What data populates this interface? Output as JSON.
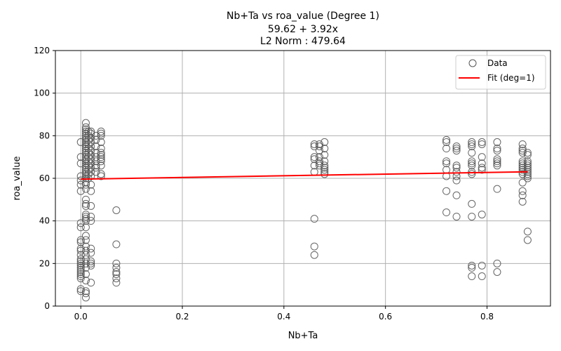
{
  "chart_data": {
    "type": "scatter",
    "title_lines": [
      "Nb+Ta vs roa_value (Degree 1)",
      "59.62 + 3.92x",
      "L2 Norm : 479.64"
    ],
    "xlabel": "Nb+Ta",
    "ylabel": "roa_value",
    "xlim": [
      -0.05,
      0.925
    ],
    "ylim": [
      0,
      120
    ],
    "xticks": [
      0.0,
      0.2,
      0.4,
      0.6,
      0.8
    ],
    "xtick_labels": [
      "0.0",
      "0.2",
      "0.4",
      "0.6",
      "0.8"
    ],
    "yticks": [
      0,
      20,
      40,
      60,
      80,
      100,
      120
    ],
    "ytick_labels": [
      "0",
      "20",
      "40",
      "60",
      "80",
      "100",
      "120"
    ],
    "grid": true,
    "legend_position": "top-right",
    "series": [
      {
        "name": "Data",
        "kind": "scatter",
        "marker": "hollow-circle",
        "color": "#555555",
        "points": [
          [
            0.0,
            77
          ],
          [
            0.0,
            70
          ],
          [
            0.0,
            67
          ],
          [
            0.0,
            61
          ],
          [
            0.0,
            59
          ],
          [
            0.0,
            57
          ],
          [
            0.0,
            54
          ],
          [
            0.0,
            39
          ],
          [
            0.0,
            37
          ],
          [
            0.0,
            31
          ],
          [
            0.0,
            30
          ],
          [
            0.0,
            27
          ],
          [
            0.0,
            26
          ],
          [
            0.0,
            24
          ],
          [
            0.0,
            22
          ],
          [
            0.0,
            21
          ],
          [
            0.0,
            20
          ],
          [
            0.0,
            19
          ],
          [
            0.0,
            18
          ],
          [
            0.0,
            17
          ],
          [
            0.0,
            16
          ],
          [
            0.0,
            15
          ],
          [
            0.0,
            14
          ],
          [
            0.0,
            13
          ],
          [
            0.0,
            8
          ],
          [
            0.0,
            7
          ],
          [
            0.01,
            86
          ],
          [
            0.01,
            84
          ],
          [
            0.01,
            83
          ],
          [
            0.01,
            82
          ],
          [
            0.01,
            81
          ],
          [
            0.01,
            80
          ],
          [
            0.01,
            79
          ],
          [
            0.01,
            78
          ],
          [
            0.01,
            77
          ],
          [
            0.01,
            76
          ],
          [
            0.01,
            75
          ],
          [
            0.01,
            74
          ],
          [
            0.01,
            73
          ],
          [
            0.01,
            72
          ],
          [
            0.01,
            71
          ],
          [
            0.01,
            70
          ],
          [
            0.01,
            69
          ],
          [
            0.01,
            68
          ],
          [
            0.01,
            67
          ],
          [
            0.01,
            66
          ],
          [
            0.01,
            65
          ],
          [
            0.01,
            64
          ],
          [
            0.01,
            63
          ],
          [
            0.01,
            62
          ],
          [
            0.01,
            61
          ],
          [
            0.01,
            60
          ],
          [
            0.01,
            58
          ],
          [
            0.01,
            57
          ],
          [
            0.01,
            55
          ],
          [
            0.01,
            50
          ],
          [
            0.01,
            48
          ],
          [
            0.01,
            47
          ],
          [
            0.01,
            43
          ],
          [
            0.01,
            42
          ],
          [
            0.01,
            41
          ],
          [
            0.01,
            40
          ],
          [
            0.01,
            37
          ],
          [
            0.01,
            33
          ],
          [
            0.01,
            31
          ],
          [
            0.01,
            28
          ],
          [
            0.01,
            26
          ],
          [
            0.01,
            24
          ],
          [
            0.01,
            22
          ],
          [
            0.01,
            20
          ],
          [
            0.01,
            18
          ],
          [
            0.01,
            15
          ],
          [
            0.01,
            12
          ],
          [
            0.01,
            7
          ],
          [
            0.01,
            6
          ],
          [
            0.01,
            4
          ],
          [
            0.015,
            82
          ],
          [
            0.015,
            80
          ],
          [
            0.015,
            78
          ],
          [
            0.015,
            76
          ],
          [
            0.015,
            74
          ],
          [
            0.015,
            72
          ],
          [
            0.015,
            70
          ],
          [
            0.015,
            68
          ],
          [
            0.015,
            66
          ],
          [
            0.015,
            64
          ],
          [
            0.015,
            62
          ],
          [
            0.015,
            60
          ],
          [
            0.02,
            82
          ],
          [
            0.02,
            81
          ],
          [
            0.02,
            79
          ],
          [
            0.02,
            77
          ],
          [
            0.02,
            75
          ],
          [
            0.02,
            73
          ],
          [
            0.02,
            71
          ],
          [
            0.02,
            69
          ],
          [
            0.02,
            67
          ],
          [
            0.02,
            65
          ],
          [
            0.02,
            63
          ],
          [
            0.02,
            61
          ],
          [
            0.02,
            57
          ],
          [
            0.02,
            54
          ],
          [
            0.02,
            47
          ],
          [
            0.02,
            42
          ],
          [
            0.02,
            40
          ],
          [
            0.02,
            27
          ],
          [
            0.02,
            25
          ],
          [
            0.02,
            21
          ],
          [
            0.02,
            20
          ],
          [
            0.02,
            19
          ],
          [
            0.02,
            11
          ],
          [
            0.03,
            80
          ],
          [
            0.03,
            78
          ],
          [
            0.03,
            75
          ],
          [
            0.03,
            72
          ],
          [
            0.03,
            70
          ],
          [
            0.03,
            68
          ],
          [
            0.03,
            66
          ],
          [
            0.03,
            65
          ],
          [
            0.03,
            63
          ],
          [
            0.04,
            82
          ],
          [
            0.04,
            81
          ],
          [
            0.04,
            80
          ],
          [
            0.04,
            77
          ],
          [
            0.04,
            74
          ],
          [
            0.04,
            72
          ],
          [
            0.04,
            71
          ],
          [
            0.04,
            70
          ],
          [
            0.04,
            69
          ],
          [
            0.04,
            68
          ],
          [
            0.04,
            66
          ],
          [
            0.04,
            62
          ],
          [
            0.04,
            61
          ],
          [
            0.07,
            45
          ],
          [
            0.07,
            29
          ],
          [
            0.07,
            20
          ],
          [
            0.07,
            18
          ],
          [
            0.07,
            16
          ],
          [
            0.07,
            15
          ],
          [
            0.07,
            13
          ],
          [
            0.07,
            11
          ],
          [
            0.46,
            76
          ],
          [
            0.46,
            75
          ],
          [
            0.46,
            70
          ],
          [
            0.46,
            69
          ],
          [
            0.46,
            66
          ],
          [
            0.46,
            63
          ],
          [
            0.46,
            41
          ],
          [
            0.46,
            28
          ],
          [
            0.46,
            24
          ],
          [
            0.47,
            76
          ],
          [
            0.47,
            75
          ],
          [
            0.47,
            73
          ],
          [
            0.47,
            70
          ],
          [
            0.47,
            68
          ],
          [
            0.47,
            67
          ],
          [
            0.47,
            66
          ],
          [
            0.48,
            77
          ],
          [
            0.48,
            74
          ],
          [
            0.48,
            71
          ],
          [
            0.48,
            68
          ],
          [
            0.48,
            66
          ],
          [
            0.48,
            65
          ],
          [
            0.48,
            64
          ],
          [
            0.48,
            63
          ],
          [
            0.48,
            62
          ],
          [
            0.72,
            78
          ],
          [
            0.72,
            77
          ],
          [
            0.72,
            74
          ],
          [
            0.72,
            68
          ],
          [
            0.72,
            67
          ],
          [
            0.72,
            64
          ],
          [
            0.72,
            61
          ],
          [
            0.72,
            54
          ],
          [
            0.72,
            44
          ],
          [
            0.74,
            75
          ],
          [
            0.74,
            74
          ],
          [
            0.74,
            73
          ],
          [
            0.74,
            66
          ],
          [
            0.74,
            65
          ],
          [
            0.74,
            63
          ],
          [
            0.74,
            61
          ],
          [
            0.74,
            59
          ],
          [
            0.74,
            52
          ],
          [
            0.74,
            42
          ],
          [
            0.77,
            77
          ],
          [
            0.77,
            76
          ],
          [
            0.77,
            75
          ],
          [
            0.77,
            72
          ],
          [
            0.77,
            68
          ],
          [
            0.77,
            67
          ],
          [
            0.77,
            66
          ],
          [
            0.77,
            63
          ],
          [
            0.77,
            62
          ],
          [
            0.77,
            48
          ],
          [
            0.77,
            42
          ],
          [
            0.77,
            19
          ],
          [
            0.77,
            18
          ],
          [
            0.77,
            14
          ],
          [
            0.79,
            77
          ],
          [
            0.79,
            76
          ],
          [
            0.79,
            70
          ],
          [
            0.79,
            67
          ],
          [
            0.79,
            65
          ],
          [
            0.79,
            64
          ],
          [
            0.79,
            43
          ],
          [
            0.79,
            19
          ],
          [
            0.79,
            14
          ],
          [
            0.82,
            77
          ],
          [
            0.82,
            74
          ],
          [
            0.82,
            73
          ],
          [
            0.82,
            69
          ],
          [
            0.82,
            68
          ],
          [
            0.82,
            67
          ],
          [
            0.82,
            66
          ],
          [
            0.82,
            55
          ],
          [
            0.82,
            20
          ],
          [
            0.82,
            16
          ],
          [
            0.87,
            76
          ],
          [
            0.87,
            74
          ],
          [
            0.87,
            73
          ],
          [
            0.87,
            72
          ],
          [
            0.87,
            68
          ],
          [
            0.87,
            67
          ],
          [
            0.87,
            66
          ],
          [
            0.87,
            65
          ],
          [
            0.87,
            64
          ],
          [
            0.87,
            63
          ],
          [
            0.87,
            62
          ],
          [
            0.87,
            58
          ],
          [
            0.87,
            54
          ],
          [
            0.87,
            52
          ],
          [
            0.87,
            49
          ],
          [
            0.88,
            72
          ],
          [
            0.88,
            71
          ],
          [
            0.88,
            68
          ],
          [
            0.88,
            67
          ],
          [
            0.88,
            66
          ],
          [
            0.88,
            65
          ],
          [
            0.88,
            64
          ],
          [
            0.88,
            63
          ],
          [
            0.88,
            62
          ],
          [
            0.88,
            61
          ],
          [
            0.88,
            60
          ],
          [
            0.88,
            35
          ],
          [
            0.88,
            31
          ]
        ]
      },
      {
        "name": "Fit (deg=1)",
        "kind": "line",
        "color": "#ff0000",
        "x": [
          0.0,
          0.88
        ],
        "y": [
          59.62,
          63.07
        ]
      }
    ]
  }
}
